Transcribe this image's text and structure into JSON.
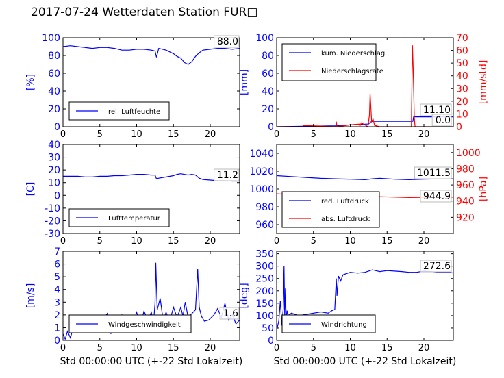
{
  "title": "2017-07-24 Wetterdaten Station FUR□",
  "xlabel": "Std 00:00:00 UTC (+-22 Std Lokalzeit)",
  "colors": {
    "primary": "#0000ff",
    "secondary": "#ff0000",
    "light_primary": "#8080ff"
  },
  "chart_data": [
    {
      "type": "line",
      "panel": "humidity",
      "xlim": [
        0,
        24
      ],
      "xticks": [
        0,
        5,
        10,
        15,
        20
      ],
      "ylim": [
        0,
        100
      ],
      "yticks": [
        0,
        20,
        40,
        60,
        80,
        100
      ],
      "ylabel": "[%]",
      "legend_position": "lower-left",
      "value_box": "88.0",
      "series": [
        {
          "name": "rel. Luftfeuchte",
          "color": "#0000ff",
          "x": [
            0,
            1,
            2,
            3,
            4,
            5,
            6,
            7,
            8,
            9,
            10,
            11,
            12,
            12.5,
            12.7,
            13,
            14,
            15,
            15.5,
            16,
            16.5,
            17,
            17.5,
            18,
            18.5,
            19,
            20,
            21,
            22,
            23,
            24
          ],
          "y": [
            90,
            91,
            90,
            89,
            88,
            89,
            89,
            88,
            86,
            86,
            87,
            87,
            86,
            85,
            78,
            88,
            86,
            82,
            79,
            77,
            72,
            70,
            73,
            79,
            83,
            86,
            87,
            88,
            88,
            87,
            88
          ]
        }
      ]
    },
    {
      "type": "line",
      "panel": "precipitation",
      "xlim": [
        0,
        24
      ],
      "xticks": [
        0,
        5,
        10,
        15,
        20
      ],
      "ylim": [
        0,
        100
      ],
      "yticks": [
        0,
        20,
        40,
        60,
        80,
        100
      ],
      "ylabel": "[mm]",
      "ylim_right": [
        0,
        70
      ],
      "yticks_right": [
        0,
        10,
        20,
        30,
        40,
        50,
        60,
        70
      ],
      "ylabel_right": "[mm/std]",
      "legend_position": "top-left",
      "value_box": "11.10",
      "value_box_2": "0.0",
      "series": [
        {
          "name": "kum. Niederschlag",
          "color": "#0000ff",
          "axis": "left",
          "x": [
            0,
            3.5,
            8,
            10,
            12.5,
            12.7,
            13,
            18.5,
            18.6,
            24
          ],
          "y": [
            0,
            0.5,
            1,
            2,
            3,
            5,
            6,
            6,
            11.1,
            11.1
          ]
        },
        {
          "name": "Niederschlagsrate",
          "color": "#ff0000",
          "axis": "right",
          "x": [
            0,
            3.5,
            3.6,
            8,
            8.1,
            8.2,
            9.5,
            10,
            11.2,
            11.3,
            11.5,
            12.4,
            12.6,
            12.7,
            12.9,
            13.1,
            13.3,
            14,
            18.3,
            18.45,
            18.55,
            18.7,
            18.8,
            24
          ],
          "y": [
            0,
            0,
            1,
            0,
            4,
            0,
            1,
            1.5,
            2,
            0.5,
            3,
            0,
            9,
            26,
            4,
            6,
            1,
            0,
            0,
            64,
            45,
            7,
            0,
            0
          ]
        }
      ]
    },
    {
      "type": "line",
      "panel": "temperature",
      "xlim": [
        0,
        24
      ],
      "xticks": [
        0,
        5,
        10,
        15,
        20
      ],
      "ylim": [
        -30,
        40
      ],
      "yticks": [
        -30,
        -20,
        -10,
        0,
        10,
        20,
        30,
        40
      ],
      "ylabel": "[C]",
      "legend_position": "lower-left",
      "value_box": "11.2",
      "series": [
        {
          "name": "Lufttemperatur",
          "color": "#0000ff",
          "x": [
            0,
            1,
            2,
            3,
            4,
            5,
            6,
            7,
            8,
            9,
            10,
            11,
            12,
            12.5,
            12.7,
            13,
            14,
            15,
            15.5,
            16,
            17,
            17.5,
            18,
            18.5,
            19,
            20,
            21,
            22,
            23,
            24
          ],
          "y": [
            15,
            15,
            15,
            14.5,
            14.5,
            15,
            15,
            15.5,
            15.5,
            16,
            16.5,
            16.5,
            16,
            16,
            13,
            13.5,
            14.5,
            15.5,
            16.5,
            17,
            16,
            16.5,
            16,
            13.5,
            12.5,
            12,
            11.5,
            11.5,
            11.2,
            11.2
          ]
        }
      ]
    },
    {
      "type": "line",
      "panel": "pressure",
      "xlim": [
        0,
        24
      ],
      "xticks": [
        0,
        5,
        10,
        15,
        20
      ],
      "ylim": [
        950,
        1050
      ],
      "yticks": [
        960,
        980,
        1000,
        1020,
        1040
      ],
      "ylim_right": [
        900,
        1010
      ],
      "yticks_right": [
        920,
        940,
        960,
        980,
        1000
      ],
      "ylabel_right": "[hPa]",
      "legend_position": "lower-left",
      "value_box": "1011.5",
      "value_box_2": "944.9",
      "series": [
        {
          "name": "red. Luftdruck",
          "color": "#0000ff",
          "axis": "left",
          "x": [
            0,
            2,
            4,
            6,
            8,
            10,
            12,
            13,
            14,
            16,
            18,
            20,
            22,
            24
          ],
          "y": [
            1015,
            1014,
            1013,
            1012,
            1011.5,
            1011,
            1010.5,
            1011.5,
            1012,
            1011,
            1010.5,
            1011,
            1011.5,
            1011.5
          ]
        },
        {
          "name": "abs. Luftdruck",
          "color": "#ff0000",
          "axis": "right",
          "x": [
            0,
            2,
            4,
            6,
            8,
            10,
            12,
            13,
            14,
            16,
            18,
            20,
            22,
            24
          ],
          "y": [
            949,
            948,
            947,
            946,
            945,
            944.5,
            944,
            945,
            945.5,
            945,
            944.5,
            944.8,
            944.9,
            944.9
          ]
        }
      ]
    },
    {
      "type": "line",
      "panel": "wind_speed",
      "xlim": [
        0,
        24
      ],
      "xticks": [
        0,
        5,
        10,
        15,
        20
      ],
      "ylim": [
        0,
        7
      ],
      "yticks": [
        0,
        1,
        2,
        3,
        4,
        5,
        6,
        7
      ],
      "ylabel": "[m/s]",
      "legend_position": "lower-left",
      "value_box": "1.6",
      "series": [
        {
          "name": "Windgeschwindigkeit",
          "color": "#0000ff",
          "x": [
            0,
            0.3,
            0.6,
            1,
            1.5,
            2,
            2.5,
            3,
            3.5,
            4,
            4.5,
            5,
            5.5,
            6,
            6.5,
            7,
            7.5,
            8,
            8.5,
            9,
            9.5,
            10,
            10.5,
            11,
            11.5,
            12,
            12.3,
            12.5,
            12.6,
            12.8,
            13.2,
            13.6,
            14,
            14.5,
            15,
            15.5,
            16,
            16.3,
            16.6,
            17,
            17.5,
            18,
            18.3,
            18.5,
            18.8,
            19.2,
            19.8,
            20.5,
            21,
            21.5,
            22,
            22.5,
            23,
            23.5,
            24
          ],
          "y": [
            0.5,
            0.1,
            0.7,
            0.2,
            1.2,
            1.6,
            0.8,
            1.8,
            1.0,
            1.6,
            0.9,
            1.4,
            1.7,
            2.1,
            0.5,
            1.7,
            1.2,
            2.0,
            1.0,
            1.9,
            1.3,
            2.2,
            1.2,
            2.3,
            1.6,
            2.2,
            1.4,
            2.9,
            6.1,
            2.4,
            3.3,
            1.6,
            2.2,
            1.5,
            2.6,
            1.8,
            2.6,
            1.9,
            3.0,
            1.8,
            2.1,
            2.4,
            5.6,
            2.6,
            1.9,
            1.5,
            1.6,
            2.0,
            2.5,
            1.8,
            2.9,
            1.6,
            2.0,
            1.3,
            1.6
          ]
        }
      ]
    },
    {
      "type": "line",
      "panel": "wind_direction",
      "xlim": [
        0,
        24
      ],
      "xticks": [
        0,
        5,
        10,
        15,
        20
      ],
      "ylim": [
        0,
        360
      ],
      "yticks": [
        0,
        50,
        100,
        150,
        200,
        250,
        300,
        350
      ],
      "ylabel": "[deg]",
      "legend_position": "lower-left",
      "value_box": "272.6",
      "series": [
        {
          "name": "Windrichtung",
          "color": "#0000ff",
          "x": [
            0,
            0.3,
            0.5,
            0.7,
            0.9,
            1.0,
            1.1,
            1.2,
            1.3,
            1.4,
            1.6,
            2,
            3,
            4,
            5,
            6,
            7,
            7.5,
            7.9,
            8.1,
            8.2,
            8.4,
            8.7,
            9,
            9.5,
            10,
            11,
            12,
            13,
            14,
            15,
            16,
            17,
            18,
            19,
            20,
            21,
            22,
            23,
            24
          ],
          "y": [
            40,
            80,
            160,
            60,
            130,
            300,
            90,
            210,
            60,
            120,
            100,
            110,
            100,
            105,
            110,
            115,
            110,
            120,
            125,
            250,
            180,
            260,
            240,
            265,
            270,
            275,
            272,
            275,
            285,
            278,
            282,
            280,
            278,
            275,
            275,
            280,
            278,
            275,
            276,
            272.6
          ]
        }
      ]
    }
  ]
}
